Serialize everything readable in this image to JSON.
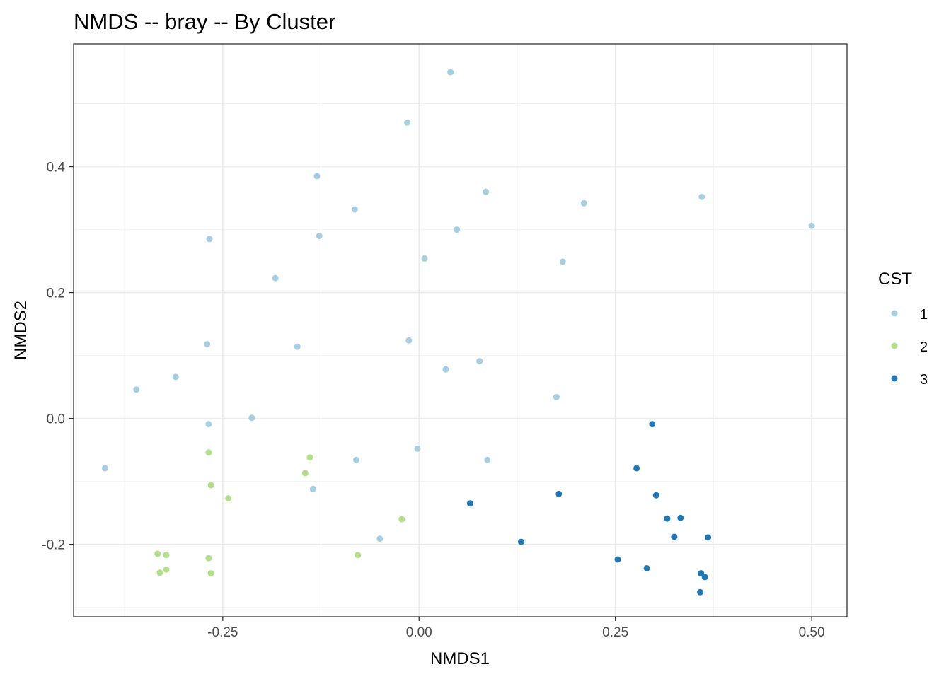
{
  "chart_data": {
    "type": "scatter",
    "title": "NMDS -- bray -- By Cluster",
    "xlabel": "NMDS1",
    "ylabel": "NMDS2",
    "xlim": [
      -0.44,
      0.545
    ],
    "ylim": [
      -0.315,
      0.595
    ],
    "x_ticks": [
      -0.25,
      0.0,
      0.25,
      0.5
    ],
    "x_tick_labels": [
      "-0.25",
      "0.00",
      "0.25",
      "0.50"
    ],
    "y_ticks": [
      -0.2,
      0.0,
      0.2,
      0.4
    ],
    "y_tick_labels": [
      "-0.2",
      "0.0",
      "0.2",
      "0.4"
    ],
    "grid": true,
    "legend": {
      "title": "CST",
      "placement": "right",
      "entries": [
        "1",
        "2",
        "3"
      ]
    },
    "colors": {
      "1": "#a6cee3",
      "2": "#b2df8a",
      "3": "#1f78b4"
    },
    "series": [
      {
        "name": "1",
        "points": [
          [
            0.04,
            0.55
          ],
          [
            -0.015,
            0.47
          ],
          [
            -0.13,
            0.385
          ],
          [
            0.085,
            0.36
          ],
          [
            0.36,
            0.352
          ],
          [
            0.21,
            0.342
          ],
          [
            -0.082,
            0.332
          ],
          [
            0.5,
            0.306
          ],
          [
            0.048,
            0.3
          ],
          [
            -0.127,
            0.29
          ],
          [
            -0.267,
            0.285
          ],
          [
            0.007,
            0.254
          ],
          [
            0.183,
            0.249
          ],
          [
            -0.183,
            0.223
          ],
          [
            -0.013,
            0.124
          ],
          [
            -0.27,
            0.118
          ],
          [
            -0.155,
            0.114
          ],
          [
            0.077,
            0.091
          ],
          [
            0.034,
            0.078
          ],
          [
            -0.31,
            0.066
          ],
          [
            -0.36,
            0.046
          ],
          [
            0.175,
            0.034
          ],
          [
            -0.213,
            0.001
          ],
          [
            -0.268,
            -0.009
          ],
          [
            -0.002,
            -0.048
          ],
          [
            -0.08,
            -0.066
          ],
          [
            0.087,
            -0.066
          ],
          [
            -0.4,
            -0.079
          ],
          [
            -0.135,
            -0.112
          ],
          [
            -0.05,
            -0.191
          ]
        ]
      },
      {
        "name": "2",
        "points": [
          [
            -0.268,
            -0.054
          ],
          [
            -0.139,
            -0.062
          ],
          [
            -0.145,
            -0.087
          ],
          [
            -0.265,
            -0.106
          ],
          [
            -0.243,
            -0.127
          ],
          [
            -0.022,
            -0.16
          ],
          [
            -0.333,
            -0.215
          ],
          [
            -0.322,
            -0.217
          ],
          [
            -0.078,
            -0.217
          ],
          [
            -0.268,
            -0.222
          ],
          [
            -0.322,
            -0.24
          ],
          [
            -0.33,
            -0.245
          ],
          [
            -0.265,
            -0.246
          ]
        ]
      },
      {
        "name": "3",
        "points": [
          [
            0.297,
            -0.009
          ],
          [
            0.277,
            -0.079
          ],
          [
            0.178,
            -0.12
          ],
          [
            0.302,
            -0.122
          ],
          [
            0.065,
            -0.135
          ],
          [
            0.316,
            -0.159
          ],
          [
            0.333,
            -0.158
          ],
          [
            0.325,
            -0.188
          ],
          [
            0.368,
            -0.189
          ],
          [
            0.13,
            -0.196
          ],
          [
            0.253,
            -0.224
          ],
          [
            0.29,
            -0.238
          ],
          [
            0.359,
            -0.246
          ],
          [
            0.364,
            -0.252
          ],
          [
            0.358,
            -0.276
          ]
        ]
      }
    ]
  }
}
